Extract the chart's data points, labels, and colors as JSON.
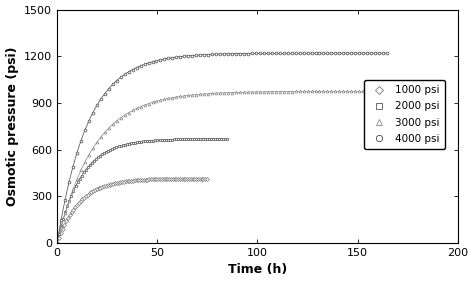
{
  "title": "",
  "xlabel": "Time (h)",
  "ylabel": "Osmotic pressure (psi)",
  "xlim": [
    0,
    200
  ],
  "ylim": [
    0,
    1500
  ],
  "xticks": [
    0,
    50,
    100,
    150,
    200
  ],
  "yticks": [
    0,
    300,
    600,
    900,
    1200,
    1500
  ],
  "series": [
    {
      "label": "1000 psi",
      "marker": "D",
      "color": "#777777",
      "t_max": 75,
      "p_max": 415,
      "rate": 0.09
    },
    {
      "label": "2000 psi",
      "marker": "s",
      "color": "#555555",
      "t_max": 85,
      "p_max": 670,
      "rate": 0.085
    },
    {
      "label": "3000 psi",
      "marker": "^",
      "color": "#888888",
      "t_max": 165,
      "p_max": 975,
      "rate": 0.055
    },
    {
      "label": "4000 psi",
      "marker": "o",
      "color": "#444444",
      "t_max": 165,
      "p_max": 1220,
      "rate": 0.065
    }
  ],
  "background_color": "#ffffff",
  "legend_loc": "center right",
  "markersize": 2.0,
  "linewidth": 0.0,
  "n_points": 500,
  "n_markers": 80
}
